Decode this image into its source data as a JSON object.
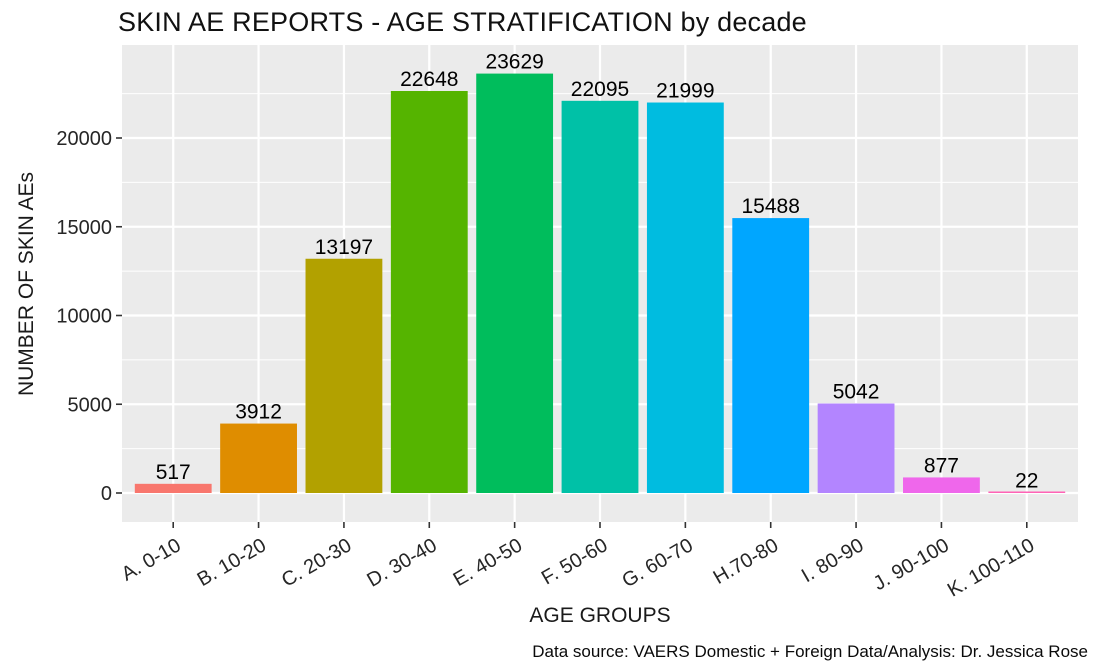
{
  "title": "SKIN AE REPORTS - AGE STRATIFICATION by decade",
  "caption": "Data source: VAERS Domestic + Foreign Data/Analysis: Dr. Jessica Rose",
  "chart_data": {
    "type": "bar",
    "title": "SKIN AE REPORTS - AGE STRATIFICATION by decade",
    "xlabel": "AGE GROUPS",
    "ylabel": "NUMBER OF SKIN AEs",
    "caption": "Data source: VAERS Domestic + Foreign Data/Analysis: Dr. Jessica Rose",
    "categories": [
      "A. 0-10",
      "B. 10-20",
      "C. 20-30",
      "D. 30-40",
      "E. 40-50",
      "F. 50-60",
      "G. 60-70",
      "H.70-80",
      "I. 80-90",
      "J. 90-100",
      "K. 100-110"
    ],
    "values": [
      517,
      3912,
      13197,
      22648,
      23629,
      22095,
      21999,
      15488,
      5042,
      877,
      22
    ],
    "bar_colors": [
      "#F8766D",
      "#DF8D00",
      "#B2A100",
      "#55B400",
      "#00BD5C",
      "#00C1A7",
      "#00BCE0",
      "#00A6FF",
      "#B385FF",
      "#EF67EB",
      "#FF63B6"
    ],
    "value_labels": [
      "517",
      "3912",
      "13197",
      "22648",
      "23629",
      "22095",
      "21999",
      "15488",
      "5042",
      "877",
      "22"
    ],
    "yticks": [
      0,
      5000,
      10000,
      15000,
      20000
    ],
    "ytick_labels": [
      "0",
      "5000",
      "10000",
      "15000",
      "20000"
    ],
    "minor_yticks": [
      2500,
      7500,
      12500,
      17500,
      22500
    ],
    "ylim": [
      0,
      25250
    ],
    "grid": "on",
    "legend_position": "none",
    "panel_bg": "#EBEBEB",
    "grid_color": "#FFFFFF",
    "axis_text_color": "#262626",
    "tick_color": "#333333",
    "x_label_angle_deg": -30
  }
}
